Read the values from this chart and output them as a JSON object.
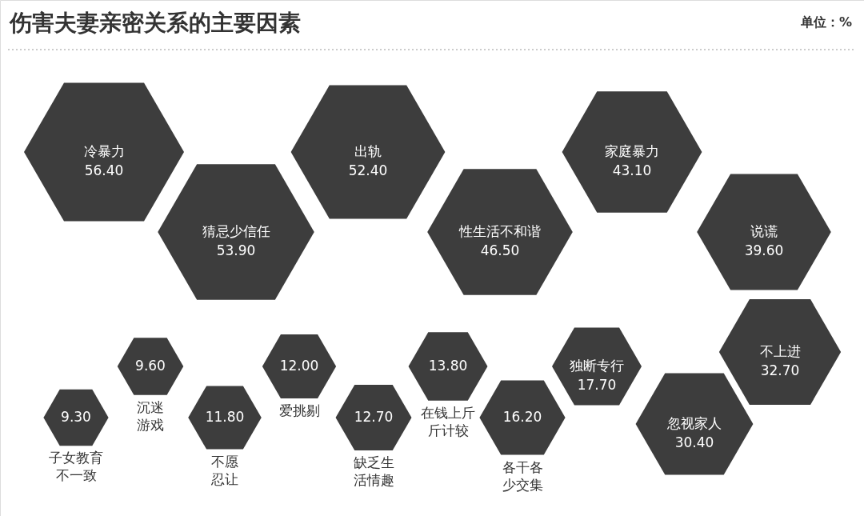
{
  "chart_data": {
    "type": "other",
    "title": "伤害夫妻亲密关系的主要因素",
    "annotations": [
      "单位：%"
    ],
    "categories": [
      "冷暴力",
      "猜忌少信任",
      "出轨",
      "性生活不和谐",
      "家庭暴力",
      "说谎",
      "子女教育不一致",
      "沉迷游戏",
      "不愿忍让",
      "爱挑剔",
      "缺乏生活情趣",
      "在钱上斤斤计较",
      "各干各少交集",
      "独断专行",
      "忽视家人",
      "不上进"
    ],
    "values": [
      56.4,
      53.9,
      52.4,
      46.5,
      43.1,
      39.6,
      9.3,
      9.6,
      11.8,
      12.0,
      12.7,
      13.8,
      16.2,
      17.7,
      30.4,
      32.7
    ],
    "value_labels": [
      "56.40",
      "53.90",
      "52.40",
      "46.50",
      "43.10",
      "39.60",
      "9.30",
      "9.60",
      "11.80",
      "12.00",
      "12.70",
      "13.80",
      "16.20",
      "17.70",
      "30.40",
      "32.70"
    ],
    "color": "#3d3d3d"
  }
}
